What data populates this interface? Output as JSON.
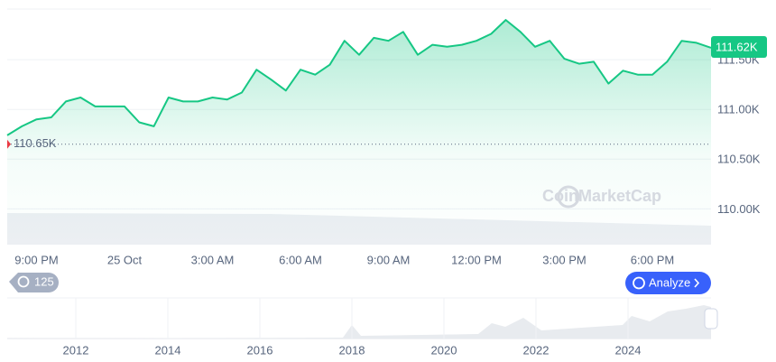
{
  "chart_data": {
    "type": "line",
    "categories": [
      null,
      null,
      "9:00 PM",
      null,
      null,
      null,
      null,
      null,
      "25 Oct",
      null,
      null,
      null,
      null,
      null,
      "3:00 AM",
      null,
      null,
      null,
      null,
      null,
      "6:00 AM",
      null,
      null,
      null,
      null,
      null,
      "9:00 AM",
      null,
      null,
      null,
      null,
      null,
      "12:00 PM",
      null,
      null,
      null,
      null,
      null,
      "3:00 PM",
      null,
      null,
      null,
      null,
      null,
      "6:00 PM",
      null,
      null,
      null,
      null
    ],
    "values": [
      110740,
      110830,
      110900,
      110920,
      111080,
      111120,
      111030,
      111030,
      111030,
      110870,
      110830,
      111120,
      111080,
      111080,
      111120,
      111100,
      111170,
      111400,
      111300,
      111190,
      111400,
      111350,
      111450,
      111690,
      111550,
      111720,
      111690,
      111780,
      111550,
      111650,
      111630,
      111650,
      111690,
      111760,
      111900,
      111780,
      111630,
      111690,
      111510,
      111460,
      111480,
      111260,
      111390,
      111350,
      111350,
      111480,
      111690,
      111670,
      111620
    ],
    "color": "#16c784",
    "ylim": [
      109640,
      112010
    ],
    "yticks": [
      {
        "value": 110000,
        "label": "110.00K"
      },
      {
        "value": 110500,
        "label": "110.50K"
      },
      {
        "value": 111000,
        "label": "111.00K"
      },
      {
        "value": 111500,
        "label": "111.50K"
      }
    ],
    "grid": true,
    "open_price": {
      "value": 110650,
      "label": "110.65K"
    },
    "current_price": {
      "value": 111620,
      "label": "111.62K"
    }
  },
  "ui": {
    "watermark": "CoinMarketCap",
    "badge": "125",
    "analyze_button": "Analyze",
    "navigator_labels": [
      "2012",
      "2014",
      "2016",
      "2018",
      "2020",
      "2022",
      "2024"
    ]
  }
}
